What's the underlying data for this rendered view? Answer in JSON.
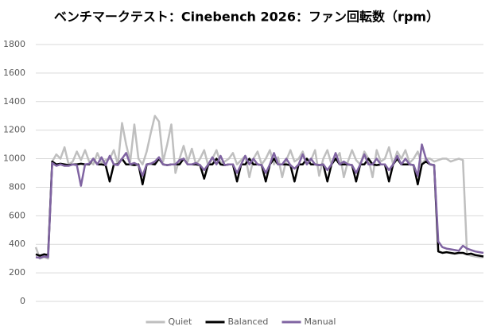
{
  "chart_data": {
    "type": "line",
    "title": "ベンチマークテスト：Cinebench 2026：ファン回転数（rpm）",
    "ylim": [
      0,
      1800
    ],
    "yticks": [
      0,
      200,
      400,
      600,
      800,
      1000,
      1200,
      1400,
      1600,
      1800
    ],
    "grid": true,
    "legend": "bottom",
    "series": [
      {
        "name": "Quiet",
        "color": "#bfbfbf",
        "values": [
          380,
          300,
          310,
          300,
          980,
          1030,
          1000,
          1080,
          960,
          980,
          1050,
          990,
          1060,
          980,
          960,
          1040,
          970,
          990,
          1000,
          1060,
          960,
          1250,
          1100,
          980,
          1240,
          1000,
          960,
          1050,
          1180,
          1300,
          1260,
          980,
          1100,
          1240,
          900,
          1000,
          1090,
          980,
          1070,
          960,
          1000,
          1060,
          950,
          1000,
          1060,
          970,
          980,
          1000,
          1040,
          960,
          990,
          1020,
          870,
          1000,
          1050,
          960,
          1000,
          1060,
          960,
          1010,
          870,
          990,
          1060,
          980,
          1000,
          1050,
          960,
          990,
          1060,
          880,
          1000,
          1060,
          960,
          1000,
          1040,
          870,
          980,
          1060,
          990,
          960,
          1050,
          1000,
          870,
          1060,
          980,
          1000,
          1080,
          960,
          1050,
          1000,
          1060,
          970,
          1000,
          1050,
          960,
          1000,
          1000,
          980,
          990,
          1000,
          1000,
          980,
          990,
          1000,
          990,
          330,
          320,
          315,
          310,
          310
        ]
      },
      {
        "name": "Balanced",
        "color": "#000000",
        "values": [
          330,
          320,
          330,
          325,
          980,
          960,
          965,
          960,
          955,
          960,
          960,
          965,
          960,
          960,
          1000,
          960,
          960,
          955,
          840,
          960,
          960,
          1000,
          960,
          960,
          955,
          960,
          820,
          960,
          965,
          960,
          1000,
          960,
          955,
          960,
          960,
          960,
          1000,
          960,
          960,
          960,
          955,
          860,
          960,
          960,
          1000,
          960,
          955,
          960,
          960,
          840,
          960,
          960,
          1000,
          960,
          960,
          955,
          840,
          960,
          1000,
          960,
          960,
          960,
          955,
          840,
          960,
          960,
          1000,
          960,
          960,
          955,
          960,
          840,
          960,
          1000,
          960,
          960,
          960,
          955,
          840,
          960,
          960,
          1000,
          960,
          955,
          960,
          960,
          840,
          960,
          1000,
          960,
          960,
          960,
          955,
          820,
          960,
          980,
          960,
          955,
          350,
          340,
          345,
          340,
          335,
          340,
          340,
          330,
          335,
          325,
          320,
          315
        ]
      },
      {
        "name": "Manual",
        "color": "#8064a2",
        "values": [
          310,
          305,
          315,
          310,
          970,
          950,
          960,
          950,
          950,
          960,
          955,
          810,
          960,
          965,
          1000,
          960,
          1010,
          955,
          1020,
          960,
          955,
          1000,
          1040,
          960,
          970,
          955,
          880,
          960,
          965,
          980,
          1010,
          960,
          955,
          960,
          960,
          990,
          1000,
          960,
          960,
          970,
          955,
          920,
          960,
          1010,
          960,
          1020,
          955,
          960,
          960,
          900,
          960,
          1020,
          960,
          1000,
          960,
          955,
          900,
          960,
          1040,
          960,
          960,
          1000,
          955,
          930,
          960,
          1030,
          960,
          1000,
          960,
          955,
          960,
          920,
          960,
          1040,
          960,
          980,
          960,
          955,
          900,
          960,
          1030,
          960,
          960,
          1000,
          960,
          960,
          920,
          960,
          1020,
          960,
          1000,
          960,
          955,
          880,
          1100,
          1000,
          960,
          955,
          420,
          380,
          370,
          365,
          360,
          355,
          390,
          370,
          360,
          350,
          345,
          340
        ]
      }
    ]
  }
}
